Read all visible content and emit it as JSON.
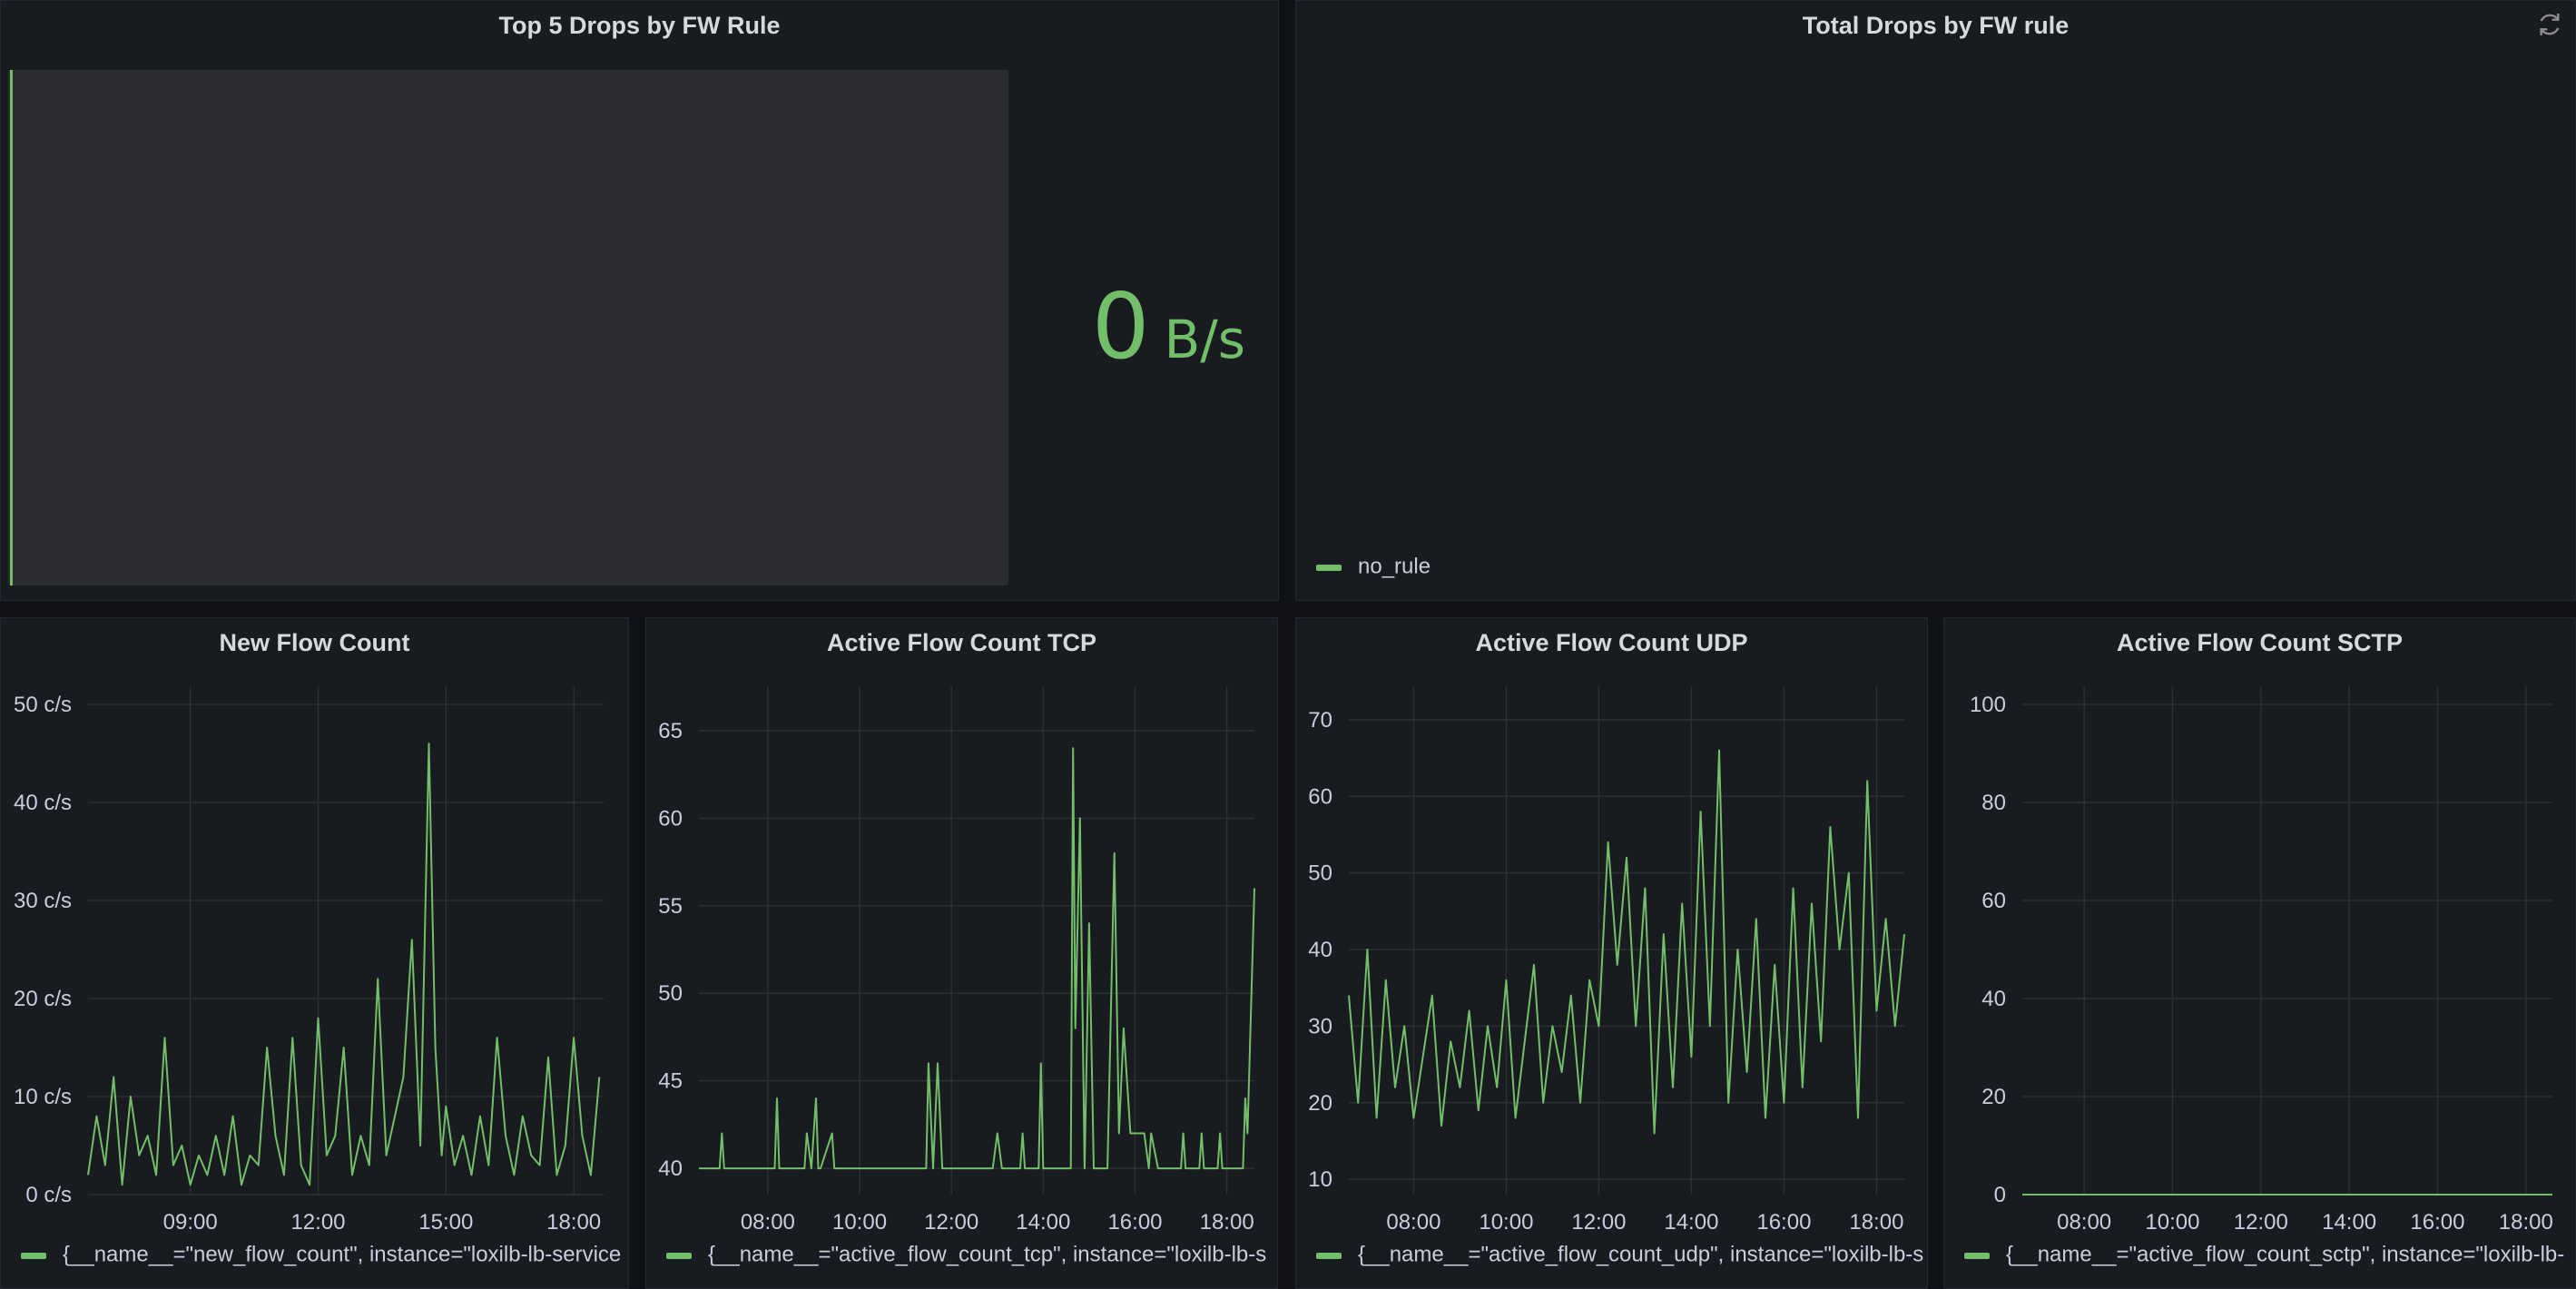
{
  "panels": {
    "top5": {
      "title": "Top 5 Drops by FW Rule",
      "value": "0",
      "unit": "B/s"
    },
    "total_drops": {
      "title": "Total Drops by FW rule",
      "legend": "no_rule"
    },
    "new_flow": {
      "title": "New Flow Count",
      "legend": "{__name__=\"new_flow_count\", instance=\"loxilb-lb-service"
    },
    "tcp": {
      "title": "Active Flow Count TCP",
      "legend": "{__name__=\"active_flow_count_tcp\", instance=\"loxilb-lb-s"
    },
    "udp": {
      "title": "Active Flow Count UDP",
      "legend": "{__name__=\"active_flow_count_udp\", instance=\"loxilb-lb-s"
    },
    "sctp": {
      "title": "Active Flow Count SCTP",
      "legend": "{__name__=\"active_flow_count_sctp\", instance=\"loxilb-lb-"
    }
  },
  "colors": {
    "series": "#73bf69",
    "panel_bg": "#181b1f",
    "grid": "#2c2f34"
  },
  "icons": {
    "refresh": "refresh-icon"
  },
  "chart_data": [
    {
      "id": "new_flow",
      "type": "line",
      "y_ticks": [
        0,
        10,
        20,
        30,
        40,
        50
      ],
      "y_tick_labels": [
        "0 c/s",
        "10 c/s",
        "20 c/s",
        "30 c/s",
        "40 c/s",
        "50 c/s"
      ],
      "ylim": [
        0,
        50
      ],
      "x_ticks": [
        9,
        12,
        15,
        18
      ],
      "x_tick_labels": [
        "09:00",
        "12:00",
        "15:00",
        "18:00"
      ],
      "xlim": [
        6.6,
        18.7
      ],
      "series": [
        {
          "x": [
            6.6,
            6.8,
            7.0,
            7.2,
            7.4,
            7.6,
            7.8,
            8.0,
            8.2,
            8.4,
            8.6,
            8.8,
            9.0,
            9.2,
            9.4,
            9.6,
            9.8,
            10.0,
            10.2,
            10.4,
            10.6,
            10.8,
            11.0,
            11.2,
            11.4,
            11.6,
            11.8,
            12.0,
            12.2,
            12.4,
            12.6,
            12.8,
            13.0,
            13.2,
            13.4,
            13.6,
            13.8,
            14.0,
            14.2,
            14.4,
            14.6,
            14.75,
            14.9,
            15.0,
            15.2,
            15.4,
            15.6,
            15.8,
            16.0,
            16.2,
            16.4,
            16.6,
            16.8,
            17.0,
            17.2,
            17.4,
            17.6,
            17.8,
            18.0,
            18.2,
            18.4,
            18.6
          ],
          "y": [
            2,
            8,
            3,
            12,
            1,
            10,
            4,
            6,
            2,
            16,
            3,
            5,
            1,
            4,
            2,
            6,
            2,
            8,
            1,
            4,
            3,
            15,
            6,
            2,
            16,
            3,
            1,
            18,
            4,
            6,
            15,
            2,
            6,
            3,
            22,
            4,
            8,
            12,
            26,
            5,
            46,
            15,
            4,
            9,
            3,
            6,
            2,
            8,
            3,
            16,
            6,
            2,
            8,
            4,
            3,
            14,
            2,
            5,
            16,
            6,
            2,
            12
          ]
        }
      ]
    },
    {
      "id": "tcp",
      "type": "line",
      "y_ticks": [
        40,
        45,
        50,
        55,
        60,
        65
      ],
      "y_tick_labels": [
        "40",
        "45",
        "50",
        "55",
        "60",
        "65"
      ],
      "ylim": [
        38.5,
        66.5
      ],
      "x_ticks": [
        8,
        10,
        12,
        14,
        16,
        18
      ],
      "x_tick_labels": [
        "08:00",
        "10:00",
        "12:00",
        "14:00",
        "16:00",
        "18:00"
      ],
      "xlim": [
        6.5,
        18.6
      ],
      "series": [
        {
          "x": [
            6.5,
            6.95,
            7.0,
            7.05,
            8.15,
            8.2,
            8.25,
            8.8,
            8.85,
            8.95,
            9.05,
            9.1,
            9.15,
            9.4,
            9.45,
            9.5,
            11.45,
            11.5,
            11.6,
            11.7,
            11.8,
            12.9,
            13.0,
            13.1,
            13.5,
            13.55,
            13.6,
            13.9,
            13.95,
            14.0,
            14.6,
            14.65,
            14.7,
            14.8,
            14.9,
            15.0,
            15.1,
            15.4,
            15.55,
            15.65,
            15.75,
            15.9,
            16.2,
            16.3,
            16.35,
            16.5,
            17.0,
            17.05,
            17.1,
            17.4,
            17.45,
            17.5,
            17.8,
            17.85,
            17.9,
            18.35,
            18.4,
            18.45,
            18.6
          ],
          "y": [
            40,
            40,
            42,
            40,
            40,
            44,
            40,
            40,
            42,
            40,
            44,
            40,
            40,
            42,
            40,
            40,
            40,
            46,
            40,
            46,
            40,
            40,
            42,
            40,
            40,
            42,
            40,
            40,
            46,
            40,
            40,
            64,
            48,
            60,
            40,
            54,
            40,
            40,
            58,
            42,
            48,
            42,
            42,
            40,
            42,
            40,
            40,
            42,
            40,
            40,
            42,
            40,
            40,
            42,
            40,
            40,
            44,
            42,
            56
          ]
        }
      ]
    },
    {
      "id": "udp",
      "type": "line",
      "y_ticks": [
        10,
        20,
        30,
        40,
        50,
        60,
        70
      ],
      "y_tick_labels": [
        "10",
        "20",
        "30",
        "40",
        "50",
        "60",
        "70"
      ],
      "ylim": [
        8,
        72
      ],
      "x_ticks": [
        8,
        10,
        12,
        14,
        16,
        18
      ],
      "x_tick_labels": [
        "08:00",
        "10:00",
        "12:00",
        "14:00",
        "16:00",
        "18:00"
      ],
      "xlim": [
        6.6,
        18.6
      ],
      "series": [
        {
          "x": [
            6.6,
            6.8,
            7.0,
            7.2,
            7.4,
            7.6,
            7.8,
            8.0,
            8.2,
            8.4,
            8.6,
            8.8,
            9.0,
            9.2,
            9.4,
            9.6,
            9.8,
            10.0,
            10.2,
            10.4,
            10.6,
            10.8,
            11.0,
            11.2,
            11.4,
            11.6,
            11.8,
            12.0,
            12.2,
            12.4,
            12.6,
            12.8,
            13.0,
            13.2,
            13.4,
            13.6,
            13.8,
            14.0,
            14.2,
            14.4,
            14.6,
            14.8,
            15.0,
            15.2,
            15.4,
            15.6,
            15.8,
            16.0,
            16.2,
            16.4,
            16.6,
            16.8,
            17.0,
            17.2,
            17.4,
            17.6,
            17.8,
            18.0,
            18.2,
            18.4,
            18.6
          ],
          "y": [
            34,
            20,
            40,
            18,
            36,
            22,
            30,
            18,
            26,
            34,
            17,
            28,
            22,
            32,
            19,
            30,
            22,
            36,
            18,
            28,
            38,
            20,
            30,
            24,
            34,
            20,
            36,
            30,
            54,
            38,
            52,
            30,
            48,
            16,
            42,
            22,
            46,
            26,
            58,
            30,
            66,
            20,
            40,
            24,
            44,
            18,
            38,
            20,
            48,
            22,
            46,
            28,
            56,
            40,
            50,
            18,
            62,
            32,
            44,
            30,
            42
          ]
        }
      ]
    },
    {
      "id": "sctp",
      "type": "line",
      "y_ticks": [
        0,
        20,
        40,
        60,
        80,
        100
      ],
      "y_tick_labels": [
        "0",
        "20",
        "40",
        "60",
        "80",
        "100"
      ],
      "ylim": [
        0,
        100
      ],
      "x_ticks": [
        8,
        10,
        12,
        14,
        16,
        18
      ],
      "x_tick_labels": [
        "08:00",
        "10:00",
        "12:00",
        "14:00",
        "16:00",
        "18:00"
      ],
      "xlim": [
        6.6,
        18.6
      ],
      "series": [
        {
          "x": [
            6.6,
            18.6
          ],
          "y": [
            0,
            0
          ]
        }
      ]
    }
  ]
}
